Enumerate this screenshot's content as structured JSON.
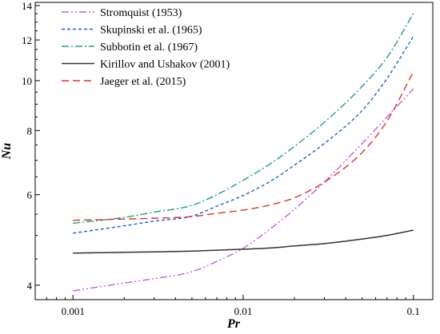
{
  "chart_data": {
    "type": "line",
    "xlabel": "Pr",
    "ylabel": "Nu",
    "xscale": "log",
    "yscale": "log",
    "xlim": [
      0.0006,
      0.13
    ],
    "ylim": [
      3.75,
      14.2
    ],
    "xticks": [
      0.001,
      0.01,
      0.1
    ],
    "xtick_labels": [
      "0.001",
      "0.01",
      "0.1"
    ],
    "yticks": [
      4,
      6,
      8,
      10,
      12,
      14
    ],
    "ytick_labels": [
      "4",
      "6",
      "8",
      "10",
      "12",
      "14"
    ],
    "grid": false,
    "legend_position": "top-left",
    "series": [
      {
        "name": "Stromquist (1953)",
        "color": "#c060e0",
        "dash": "dash-dot-dot",
        "x": [
          0.001,
          0.002,
          0.003,
          0.005,
          0.007,
          0.01,
          0.015,
          0.02,
          0.03,
          0.05,
          0.07,
          0.1
        ],
        "y": [
          3.9,
          4.04,
          4.12,
          4.25,
          4.45,
          4.72,
          5.2,
          5.62,
          6.35,
          7.55,
          8.5,
          9.65
        ]
      },
      {
        "name": "Skupinski et al. (1965)",
        "color": "#1f5fd0",
        "dash": "short-dash",
        "x": [
          0.001,
          0.002,
          0.003,
          0.005,
          0.007,
          0.01,
          0.015,
          0.02,
          0.03,
          0.05,
          0.07,
          0.1
        ],
        "y": [
          5.05,
          5.22,
          5.33,
          5.45,
          5.7,
          5.98,
          6.42,
          6.85,
          7.55,
          8.75,
          10.1,
          12.2
        ]
      },
      {
        "name": "Subbotin et al. (1967)",
        "color": "#20a080",
        "dash": "dash-dot",
        "x": [
          0.001,
          0.002,
          0.003,
          0.005,
          0.007,
          0.01,
          0.015,
          0.02,
          0.03,
          0.05,
          0.07,
          0.1
        ],
        "y": [
          5.28,
          5.42,
          5.55,
          5.72,
          6.0,
          6.4,
          6.95,
          7.45,
          8.3,
          9.75,
          11.1,
          13.5
        ]
      },
      {
        "name": "Kirillov and Ushakov (2001)",
        "color": "#333333",
        "dash": "solid",
        "x": [
          0.001,
          0.002,
          0.003,
          0.005,
          0.007,
          0.01,
          0.015,
          0.02,
          0.03,
          0.05,
          0.07,
          0.1
        ],
        "y": [
          4.62,
          4.635,
          4.645,
          4.66,
          4.68,
          4.7,
          4.73,
          4.77,
          4.82,
          4.92,
          5.0,
          5.12
        ]
      },
      {
        "name": "Jaeger et al. (2015)",
        "color": "#e03030",
        "dash": "long-dash",
        "x": [
          0.001,
          0.002,
          0.003,
          0.005,
          0.007,
          0.01,
          0.015,
          0.02,
          0.03,
          0.05,
          0.07,
          0.1
        ],
        "y": [
          5.35,
          5.38,
          5.4,
          5.44,
          5.52,
          5.6,
          5.75,
          5.92,
          6.35,
          7.25,
          8.35,
          10.4
        ]
      }
    ]
  }
}
